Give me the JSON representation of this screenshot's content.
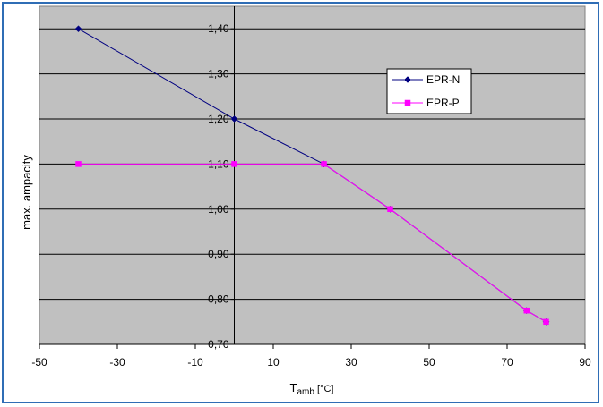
{
  "chart_data": {
    "type": "line",
    "title": "",
    "xlabel_main": "T",
    "xlabel_sub": "amb",
    "xlabel_unit": " [°C]",
    "ylabel": "max. ampacity",
    "xlim": [
      -50,
      90
    ],
    "ylim": [
      0.7,
      1.45
    ],
    "x_ticks": [
      "-50",
      "-30",
      "-10",
      "10",
      "30",
      "50",
      "70",
      "90"
    ],
    "x_tick_values": [
      -50,
      -30,
      -10,
      10,
      30,
      50,
      70,
      90
    ],
    "y_ticks": [
      "0,70",
      "0,80",
      "0,90",
      "1,00",
      "1,10",
      "1,20",
      "1,30",
      "1,40"
    ],
    "y_tick_values": [
      0.7,
      0.8,
      0.9,
      1.0,
      1.1,
      1.2,
      1.3,
      1.4
    ],
    "grid": "horizontal",
    "legend_position": "top-right",
    "plot_background": "#c0c0c0",
    "series": [
      {
        "name": "EPR-N",
        "color": "#000080",
        "marker": "diamond",
        "points": [
          [
            -40,
            1.4
          ],
          [
            0,
            1.2
          ],
          [
            23,
            1.1
          ],
          [
            40,
            1.0
          ],
          [
            75,
            0.775
          ],
          [
            80,
            0.75
          ]
        ]
      },
      {
        "name": "EPR-P",
        "color": "#ff00ff",
        "marker": "square",
        "points": [
          [
            -40,
            1.1
          ],
          [
            0,
            1.1
          ],
          [
            23,
            1.1
          ],
          [
            40,
            1.0
          ],
          [
            75,
            0.775
          ],
          [
            80,
            0.75
          ]
        ]
      }
    ]
  }
}
